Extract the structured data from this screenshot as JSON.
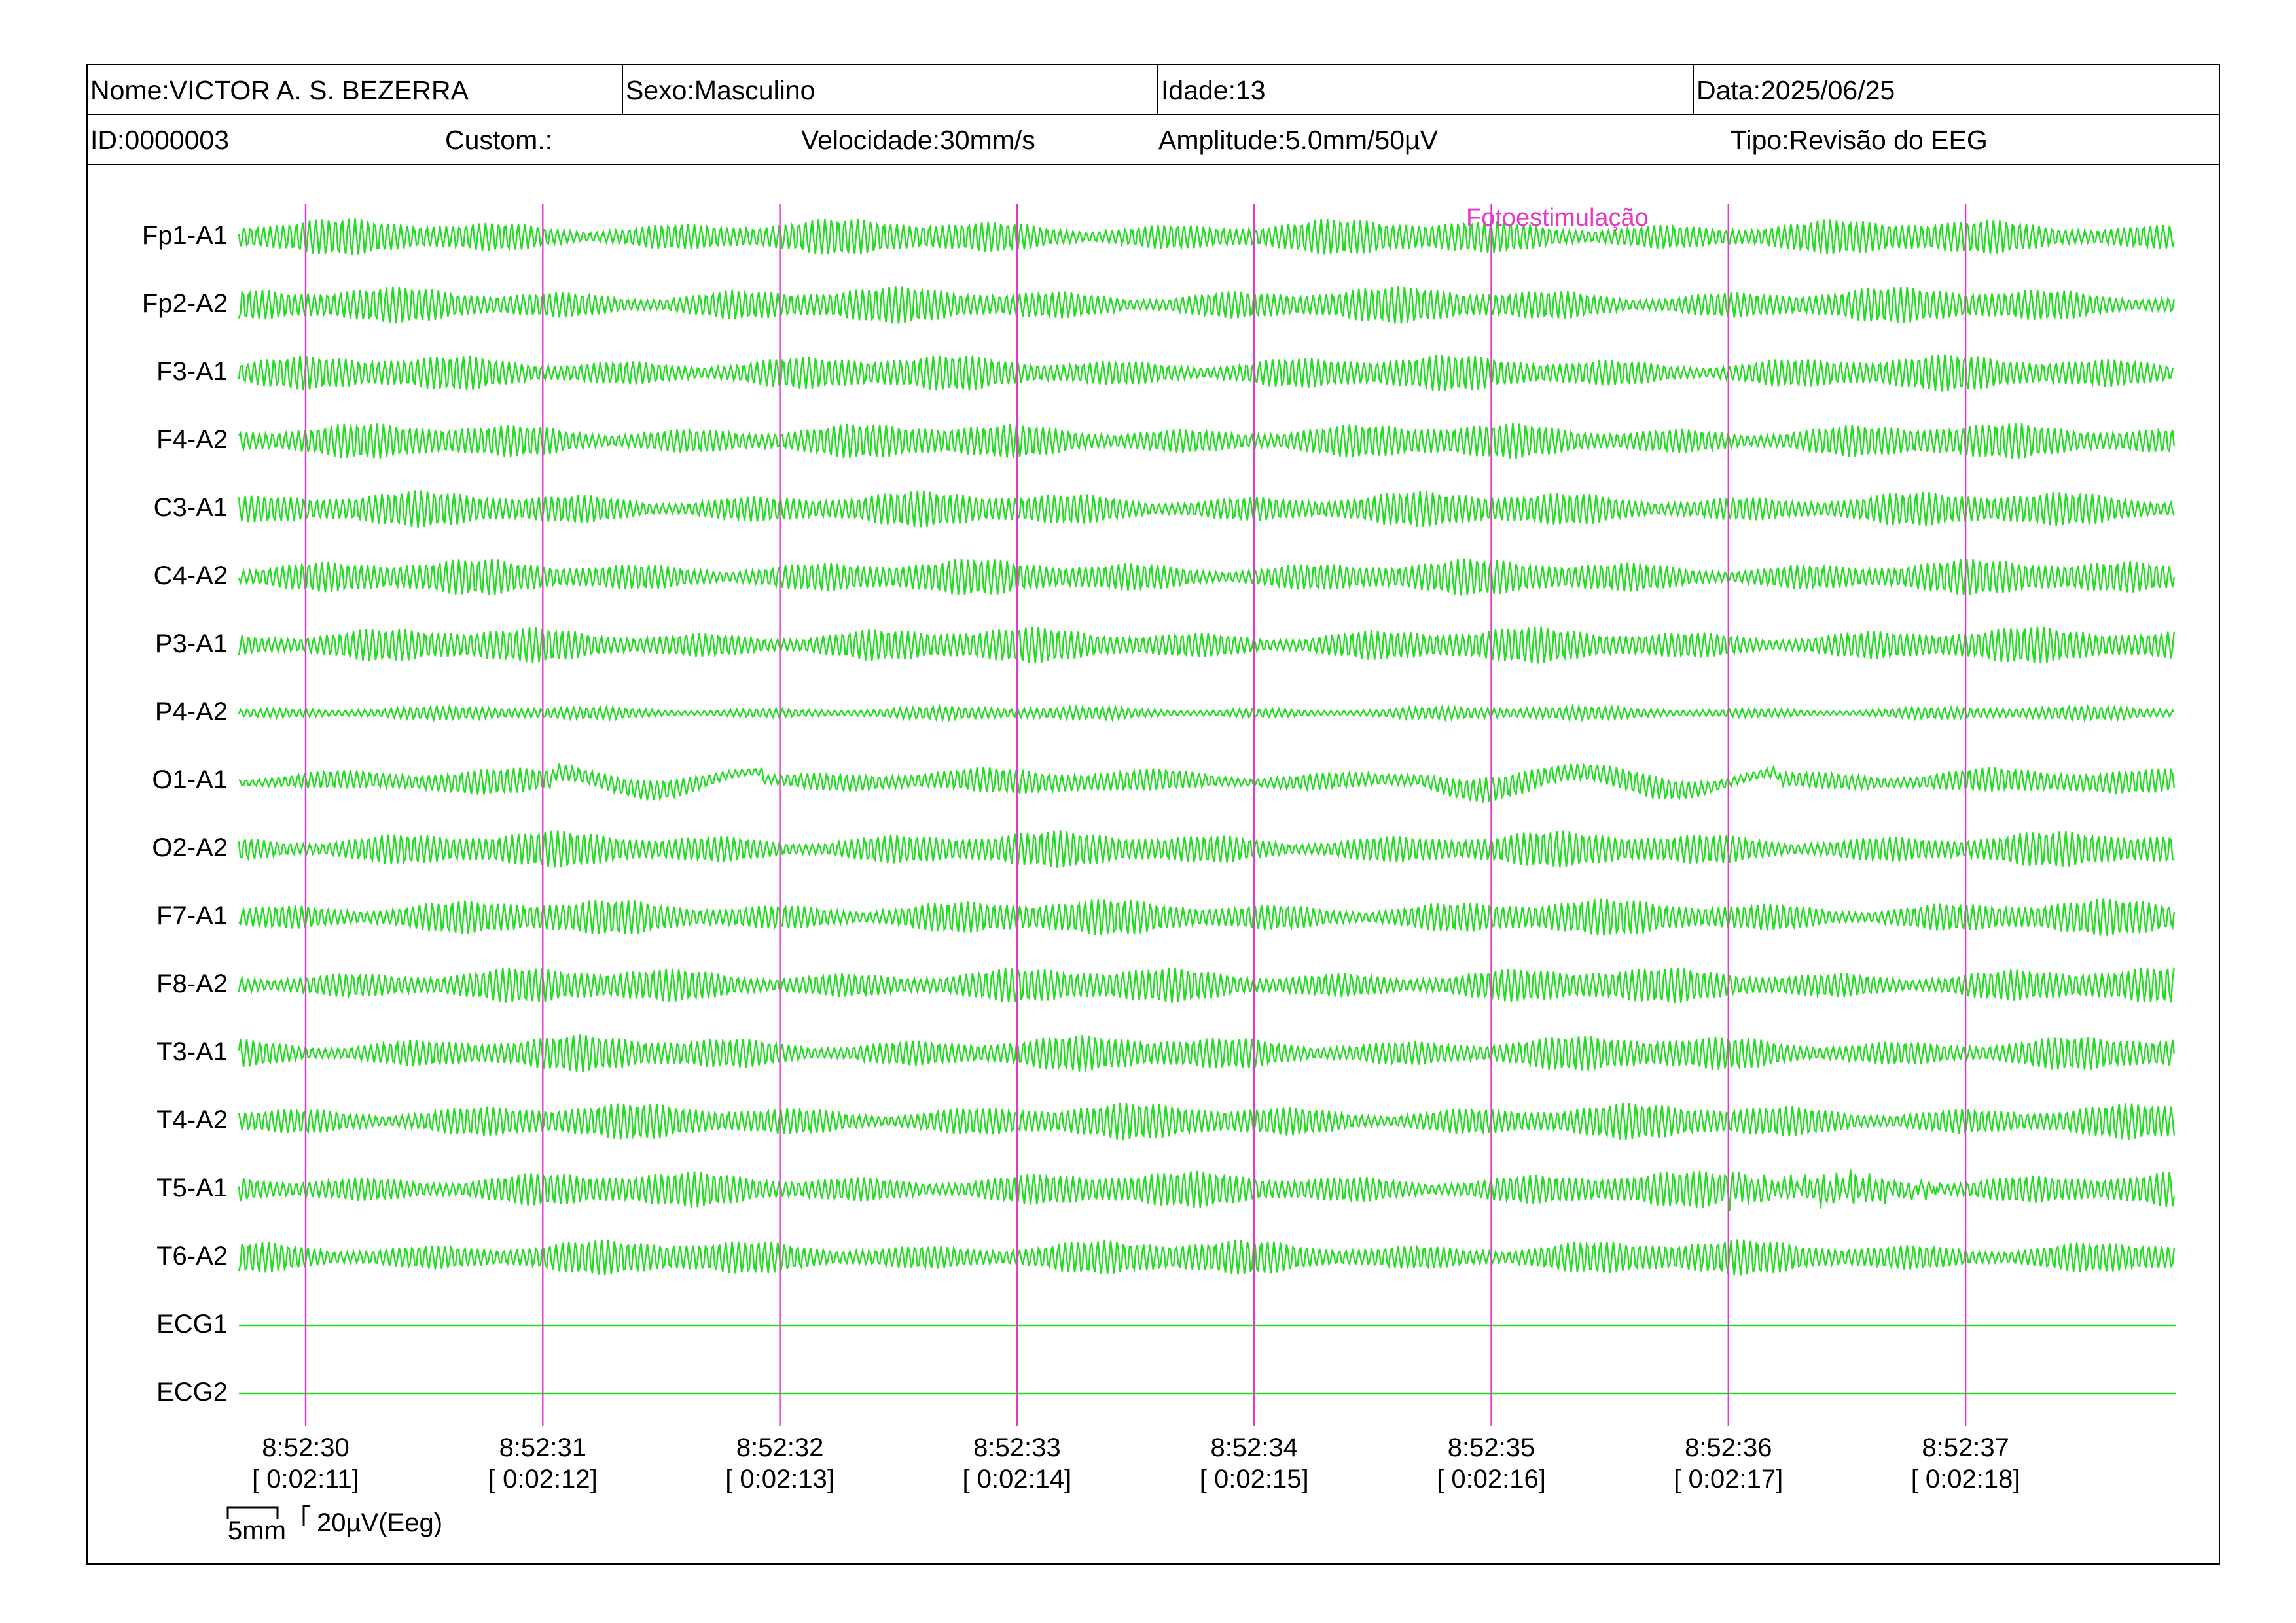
{
  "header": {
    "nome": "Nome:VICTOR A. S. BEZERRA",
    "sexo": "Sexo:Masculino",
    "idade": "Idade:13",
    "data": "Data:2025/06/25",
    "id": "ID:0000003",
    "custom": "Custom.:",
    "velocidade": "Velocidade:30mm/s",
    "amplitude": "Amplitude:5.0mm/50µV",
    "tipo": "Tipo:Revisão do EEG"
  },
  "channels": [
    "Fp1-A1",
    "Fp2-A2",
    "F3-A1",
    "F4-A2",
    "C3-A1",
    "C4-A2",
    "P3-A1",
    "P4-A2",
    "O1-A1",
    "O2-A2",
    "F7-A1",
    "F8-A2",
    "T3-A1",
    "T4-A2",
    "T5-A1",
    "T6-A2",
    "ECG1",
    "ECG2"
  ],
  "time_marks": [
    {
      "clock": "8:52:30",
      "elapsed": "[ 0:02:11]"
    },
    {
      "clock": "8:52:31",
      "elapsed": "[ 0:02:12]"
    },
    {
      "clock": "8:52:32",
      "elapsed": "[ 0:02:13]"
    },
    {
      "clock": "8:52:33",
      "elapsed": "[ 0:02:14]"
    },
    {
      "clock": "8:52:34",
      "elapsed": "[ 0:02:15]"
    },
    {
      "clock": "8:52:35",
      "elapsed": "[ 0:02:16]"
    },
    {
      "clock": "8:52:36",
      "elapsed": "[ 0:02:17]"
    },
    {
      "clock": "8:52:37",
      "elapsed": "[ 0:02:18]"
    }
  ],
  "event_marker": "Fotoestimulação",
  "scale": {
    "time_bar": "5mm",
    "amp_bar": "20µV(Eeg)"
  },
  "colors": {
    "trace": "#22dd22",
    "marker": "#e838c8",
    "border": "#000000"
  }
}
